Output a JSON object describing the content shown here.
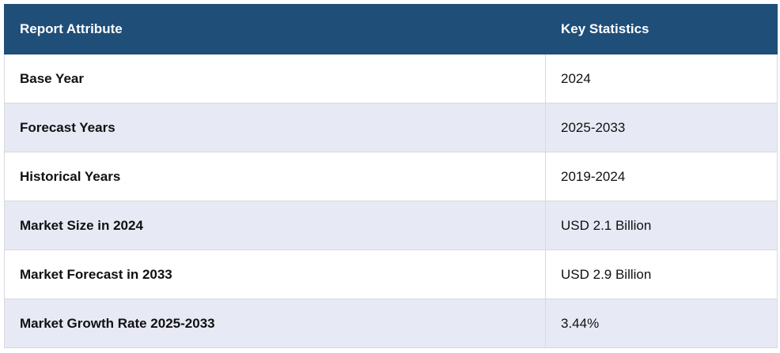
{
  "table": {
    "header": [
      "Report Attribute",
      "Key Statistics"
    ],
    "rows": [
      [
        "Base Year",
        "2024"
      ],
      [
        "Forecast Years",
        "2025-2033"
      ],
      [
        "Historical Years",
        "2019-2024"
      ],
      [
        "Market Size in 2024",
        "USD 2.1 Billion"
      ],
      [
        "Market Forecast in 2033",
        "USD 2.9 Billion"
      ],
      [
        "Market Growth Rate 2025-2033",
        "3.44%"
      ]
    ]
  }
}
